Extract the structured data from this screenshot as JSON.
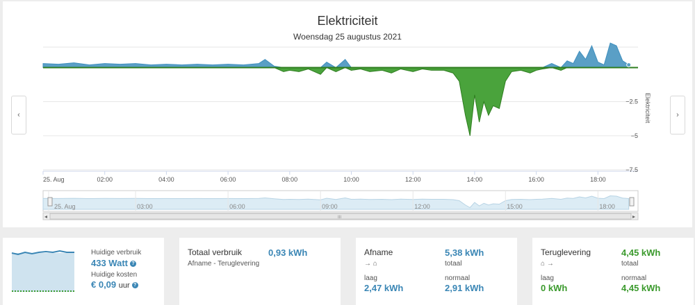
{
  "chart": {
    "title": "Elektriciteit",
    "subtitle": "Woensdag 25 augustus 2021",
    "y_axis_label": "Elektriciteit",
    "prev_icon": "‹",
    "next_icon": "›"
  },
  "chart_data": {
    "type": "area",
    "title": "Elektriciteit",
    "subtitle": "Woensdag 25 augustus 2021",
    "xlabel": "",
    "ylabel": "Elektriciteit",
    "ylim": [
      -7.5,
      1.5
    ],
    "yticks": [
      "−2.5",
      "−5",
      "−7.5"
    ],
    "xticks": [
      "25. Aug",
      "02:00",
      "04:00",
      "06:00",
      "08:00",
      "10:00",
      "12:00",
      "14:00",
      "16:00",
      "18:00"
    ],
    "grid": true,
    "colors": {
      "positive": "#5a9fc6",
      "negative": "#4aa33c",
      "line": "#2e7d1f"
    },
    "x_hours": [
      0,
      0.5,
      1,
      1.5,
      2,
      2.5,
      3,
      3.5,
      4,
      4.5,
      5,
      5.5,
      6,
      6.5,
      7,
      7.2,
      7.5,
      7.8,
      8,
      8.3,
      8.6,
      9,
      9.2,
      9.5,
      9.8,
      10,
      10.3,
      10.6,
      11,
      11.3,
      11.6,
      12,
      12.3,
      12.6,
      13,
      13.3,
      13.5,
      13.7,
      13.85,
      14,
      14.15,
      14.3,
      14.45,
      14.6,
      14.8,
      15,
      15.2,
      15.5,
      15.8,
      16,
      16.2,
      16.5,
      16.8,
      17,
      17.2,
      17.4,
      17.6,
      17.8,
      18,
      18.2,
      18.4,
      18.6,
      18.8,
      19
    ],
    "values": [
      0.3,
      0.25,
      0.35,
      0.2,
      0.3,
      0.25,
      0.3,
      0.2,
      0.25,
      0.2,
      0.25,
      0.2,
      0.25,
      0.2,
      0.3,
      0.6,
      0.1,
      -0.3,
      -0.2,
      -0.3,
      -0.1,
      -0.5,
      0.4,
      -0.3,
      0.6,
      -0.2,
      -0.1,
      -0.3,
      -0.2,
      -0.4,
      -0.1,
      -0.3,
      -0.1,
      -0.2,
      -0.2,
      -0.4,
      -1.0,
      -3.5,
      -5.0,
      -2.0,
      -4.0,
      -2.5,
      -3.5,
      -2.8,
      -3.0,
      -1.0,
      -0.3,
      -0.2,
      -0.4,
      -0.2,
      -0.1,
      0.3,
      -0.2,
      0.5,
      0.3,
      1.2,
      0.6,
      1.6,
      0.4,
      0.2,
      1.8,
      1.6,
      0.5,
      0.2
    ]
  },
  "navigator": {
    "labels": [
      "25. Aug",
      "03:00",
      "06:00",
      "09:00",
      "12:00",
      "15:00",
      "18:00"
    ],
    "scroll_grip": "III",
    "left_arrow": "◂",
    "right_arrow": "▸"
  },
  "cards": {
    "current": {
      "usage_label": "Huidige verbruik",
      "usage_value": "433 Watt",
      "cost_label": "Huidige kosten",
      "cost_value": "€ 0,09",
      "cost_unit": "uur"
    },
    "total": {
      "title": "Totaal verbruik",
      "value": "0,93 kWh",
      "sub": "Afname - Teruglevering"
    },
    "afname": {
      "title": "Afname",
      "total_value": "5,38 kWh",
      "total_label": "totaal",
      "low_label": "laag",
      "low_value": "2,47 kWh",
      "normal_label": "normaal",
      "normal_value": "2,91 kWh",
      "arrow": "→ ⌂"
    },
    "terug": {
      "title": "Teruglevering",
      "total_value": "4,45 kWh",
      "total_label": "totaal",
      "low_label": "laag",
      "low_value": "0 kWh",
      "normal_label": "normaal",
      "normal_value": "4,45 kWh",
      "arrow": "⌂ →"
    }
  }
}
